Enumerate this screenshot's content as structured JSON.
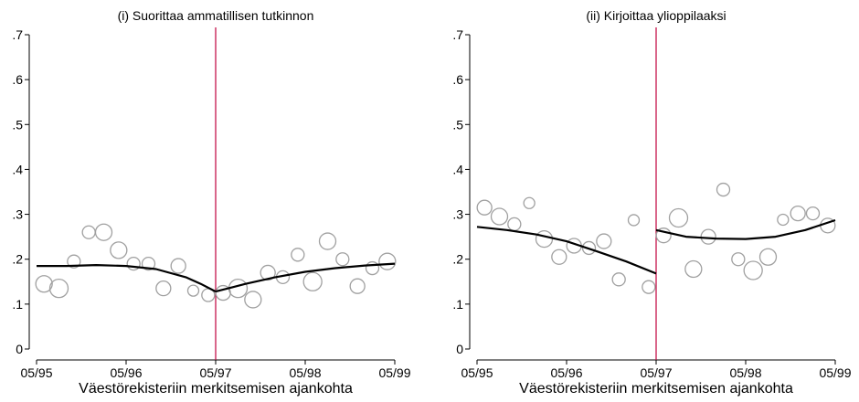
{
  "chart_data": [
    {
      "type": "scatter",
      "title": "(i) Suorittaa ammatillisen tutkinnon",
      "xlabel": "Väestörekisteriin merkitsemisen ajankohta",
      "ylabel": "",
      "x_ticks": [
        "05/95",
        "05/96",
        "05/97",
        "05/98",
        "05/99"
      ],
      "y_ticks": [
        "0",
        ".1",
        ".2",
        ".3",
        ".4",
        ".5",
        ".6",
        ".7"
      ],
      "xlim": [
        0,
        48
      ],
      "ylim": [
        0,
        0.7
      ],
      "cutoff": 24,
      "colors": {
        "markers": "#a0a0a0",
        "fit": "#000000",
        "cutoff": "#c0003c"
      },
      "points": [
        {
          "x": 1.0,
          "y": 0.145,
          "r": 9
        },
        {
          "x": 3.0,
          "y": 0.135,
          "r": 10
        },
        {
          "x": 5.0,
          "y": 0.195,
          "r": 7
        },
        {
          "x": 7.0,
          "y": 0.26,
          "r": 7
        },
        {
          "x": 9.0,
          "y": 0.26,
          "r": 9
        },
        {
          "x": 11.0,
          "y": 0.22,
          "r": 9
        },
        {
          "x": 13.0,
          "y": 0.19,
          "r": 7
        },
        {
          "x": 15.0,
          "y": 0.19,
          "r": 7
        },
        {
          "x": 17.0,
          "y": 0.135,
          "r": 8
        },
        {
          "x": 19.0,
          "y": 0.185,
          "r": 8
        },
        {
          "x": 21.0,
          "y": 0.13,
          "r": 6
        },
        {
          "x": 23.0,
          "y": 0.12,
          "r": 7
        },
        {
          "x": 25.0,
          "y": 0.125,
          "r": 8
        },
        {
          "x": 27.0,
          "y": 0.135,
          "r": 10
        },
        {
          "x": 29.0,
          "y": 0.11,
          "r": 9
        },
        {
          "x": 31.0,
          "y": 0.17,
          "r": 8
        },
        {
          "x": 33.0,
          "y": 0.16,
          "r": 7
        },
        {
          "x": 35.0,
          "y": 0.21,
          "r": 7
        },
        {
          "x": 37.0,
          "y": 0.15,
          "r": 10
        },
        {
          "x": 39.0,
          "y": 0.24,
          "r": 9
        },
        {
          "x": 41.0,
          "y": 0.2,
          "r": 7
        },
        {
          "x": 43.0,
          "y": 0.14,
          "r": 8
        },
        {
          "x": 45.0,
          "y": 0.18,
          "r": 7
        },
        {
          "x": 47.0,
          "y": 0.195,
          "r": 9
        }
      ],
      "fit_left": {
        "x": [
          0.0,
          4.0,
          8.0,
          12.0,
          16.0,
          20.0,
          22.0,
          24.0
        ],
        "y": [
          0.185,
          0.185,
          0.187,
          0.185,
          0.178,
          0.16,
          0.145,
          0.128
        ]
      },
      "fit_right": {
        "x": [
          24.0,
          28.0,
          32.0,
          36.0,
          40.0,
          44.0,
          48.0
        ],
        "y": [
          0.128,
          0.145,
          0.16,
          0.172,
          0.18,
          0.186,
          0.19
        ]
      }
    },
    {
      "type": "scatter",
      "title": "(ii) Kirjoittaa ylioppilaaksi",
      "xlabel": "Väestörekisteriin merkitsemisen ajankohta",
      "ylabel": "",
      "x_ticks": [
        "05/95",
        "05/96",
        "05/97",
        "05/98",
        "05/99"
      ],
      "y_ticks": [
        "0",
        ".1",
        ".2",
        ".3",
        ".4",
        ".5",
        ".6",
        ".7"
      ],
      "xlim": [
        0,
        48
      ],
      "ylim": [
        0,
        0.7
      ],
      "cutoff": 24,
      "colors": {
        "markers": "#a0a0a0",
        "fit": "#000000",
        "cutoff": "#c0003c"
      },
      "points": [
        {
          "x": 1.0,
          "y": 0.315,
          "r": 8
        },
        {
          "x": 3.0,
          "y": 0.295,
          "r": 9
        },
        {
          "x": 5.0,
          "y": 0.278,
          "r": 7
        },
        {
          "x": 7.0,
          "y": 0.325,
          "r": 6
        },
        {
          "x": 9.0,
          "y": 0.245,
          "r": 9
        },
        {
          "x": 11.0,
          "y": 0.205,
          "r": 8
        },
        {
          "x": 13.0,
          "y": 0.23,
          "r": 8
        },
        {
          "x": 15.0,
          "y": 0.225,
          "r": 7
        },
        {
          "x": 17.0,
          "y": 0.24,
          "r": 8
        },
        {
          "x": 19.0,
          "y": 0.155,
          "r": 7
        },
        {
          "x": 21.0,
          "y": 0.287,
          "r": 6
        },
        {
          "x": 23.0,
          "y": 0.138,
          "r": 7
        },
        {
          "x": 25.0,
          "y": 0.253,
          "r": 8
        },
        {
          "x": 27.0,
          "y": 0.292,
          "r": 10
        },
        {
          "x": 29.0,
          "y": 0.178,
          "r": 9
        },
        {
          "x": 31.0,
          "y": 0.25,
          "r": 8
        },
        {
          "x": 33.0,
          "y": 0.355,
          "r": 7
        },
        {
          "x": 35.0,
          "y": 0.2,
          "r": 7
        },
        {
          "x": 37.0,
          "y": 0.175,
          "r": 10
        },
        {
          "x": 39.0,
          "y": 0.205,
          "r": 9
        },
        {
          "x": 41.0,
          "y": 0.288,
          "r": 6
        },
        {
          "x": 43.0,
          "y": 0.302,
          "r": 8
        },
        {
          "x": 45.0,
          "y": 0.302,
          "r": 7
        },
        {
          "x": 47.0,
          "y": 0.275,
          "r": 8
        }
      ],
      "fit_left": {
        "x": [
          0.0,
          4.0,
          8.0,
          12.0,
          16.0,
          20.0,
          24.0
        ],
        "y": [
          0.272,
          0.265,
          0.255,
          0.24,
          0.218,
          0.195,
          0.168
        ]
      },
      "fit_right": {
        "x": [
          24.0,
          28.0,
          32.0,
          36.0,
          40.0,
          44.0,
          48.0
        ],
        "y": [
          0.265,
          0.25,
          0.246,
          0.245,
          0.25,
          0.265,
          0.287
        ]
      }
    }
  ]
}
